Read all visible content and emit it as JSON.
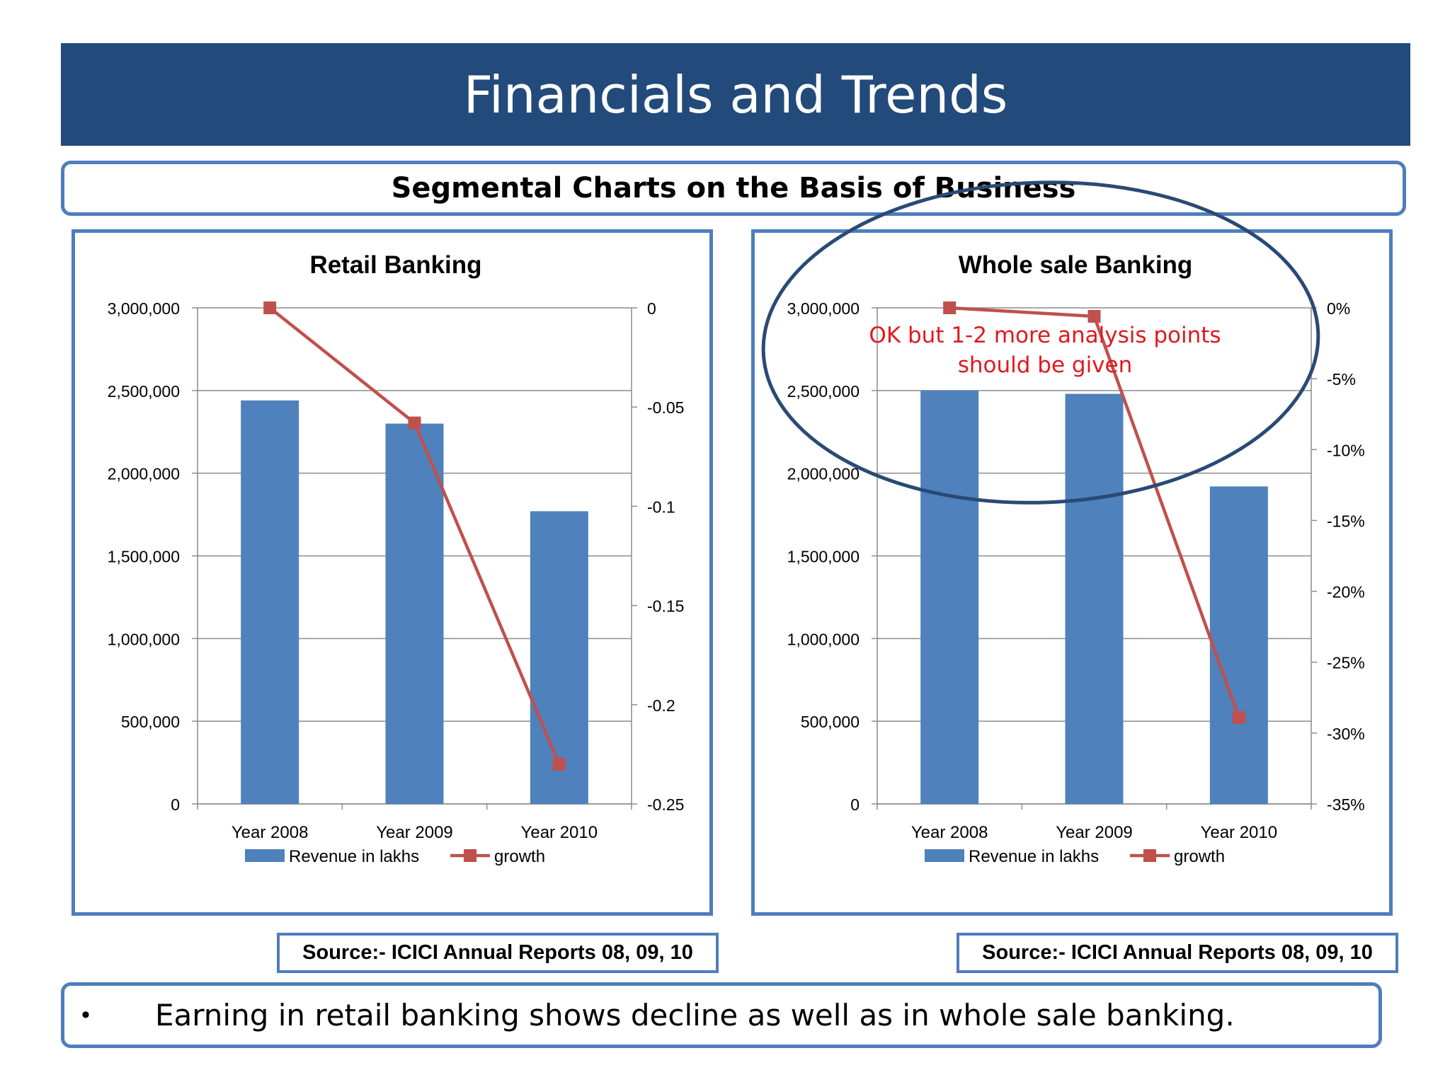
{
  "header": {
    "title": "Financials and Trends"
  },
  "subtitle": {
    "text": "Segmental Charts on the Basis of Business"
  },
  "chart_data": [
    {
      "type": "bar",
      "title": "Retail  Banking",
      "categories": [
        "Year 2008",
        "Year 2009",
        "Year  2010"
      ],
      "series": [
        {
          "name": "Revenue in lakhs",
          "type": "bar",
          "axis": "left",
          "values": [
            2440000,
            2300000,
            1770000
          ],
          "color": "#4f81bd"
        },
        {
          "name": "growth",
          "type": "line",
          "axis": "right",
          "values": [
            0,
            -0.058,
            -0.23
          ],
          "color": "#c0504d"
        }
      ],
      "ylim": [
        0,
        3000000
      ],
      "y_ticks": [
        "0",
        "500,000",
        "1,000,000",
        "1,500,000",
        "2,000,000",
        "2,500,000",
        "3,000,000"
      ],
      "y2lim": [
        -0.25,
        0
      ],
      "y2_ticks": [
        "-0.25",
        "-0.2",
        "-0.15",
        "-0.1",
        "-0.05",
        "0"
      ],
      "grid": true,
      "legend": "bottom"
    },
    {
      "type": "bar",
      "title": "Whole sale Banking",
      "categories": [
        "Year 2008",
        "Year 2009",
        "Year  2010"
      ],
      "series": [
        {
          "name": "Revenue in lakhs",
          "type": "bar",
          "axis": "left",
          "values": [
            2500000,
            2480000,
            1920000
          ],
          "color": "#4f81bd"
        },
        {
          "name": "growth",
          "type": "line",
          "axis": "right",
          "values": [
            0,
            -0.006,
            -0.289
          ],
          "color": "#c0504d"
        }
      ],
      "ylim": [
        0,
        3000000
      ],
      "y_ticks": [
        "0",
        "500,000",
        "1,000,000",
        "1,500,000",
        "2,000,000",
        "2,500,000",
        "3,000,000"
      ],
      "y2lim": [
        -0.35,
        0
      ],
      "y2_ticks": [
        "-35%",
        "-30%",
        "-25%",
        "-20%",
        "-15%",
        "-10%",
        "-5%",
        "0%"
      ],
      "grid": true,
      "legend": "bottom"
    }
  ],
  "sources": {
    "left": "Source:- ICICI Annual Reports 08, 09, 10",
    "right": "Source:- ICICI Annual Reports 08, 09, 10"
  },
  "annotation": {
    "text_line1": "OK but 1-2 more analysis points",
    "text_line2": "should be given",
    "color": "#e0191f"
  },
  "summary": {
    "bullet": "•",
    "text": "Earning in retail banking shows decline as well as in whole sale banking."
  },
  "colors": {
    "band": "#224a7b",
    "border": "#4f7dbd",
    "bar": "#4f81bd",
    "line": "#c0504d"
  }
}
